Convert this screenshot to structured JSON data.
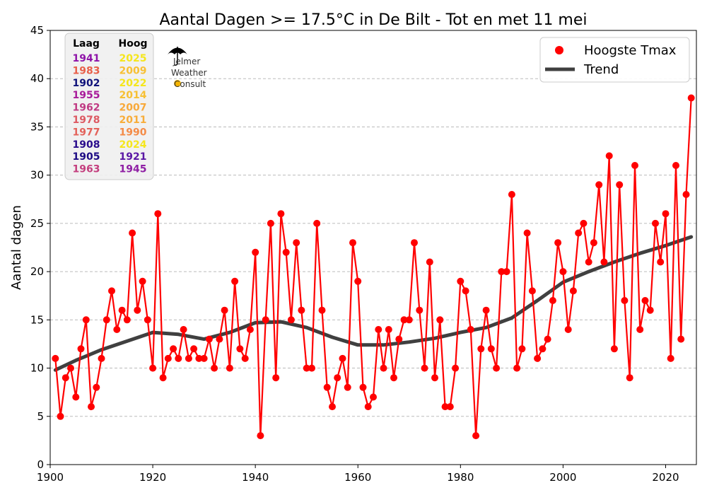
{
  "chart_data": {
    "type": "line",
    "title": "Aantal Dagen >= 17.5°C in De Bilt - Tot en met 11 mei",
    "xlabel": "",
    "ylabel": "Aantal dagen",
    "xlim": [
      1900,
      2026
    ],
    "ylim": [
      0,
      45
    ],
    "xticks": [
      "1900",
      "1920",
      "1940",
      "1960",
      "1980",
      "2000",
      "2020"
    ],
    "yticks": [
      "0",
      "5",
      "10",
      "15",
      "20",
      "25",
      "30",
      "35",
      "40",
      "45"
    ],
    "grid": "y-dashed",
    "legend_position": "top-right",
    "series": [
      {
        "name": "Hoogste Tmax",
        "color": "#ff0000",
        "x": [
          1901,
          1902,
          1903,
          1904,
          1905,
          1906,
          1907,
          1908,
          1909,
          1910,
          1911,
          1912,
          1913,
          1914,
          1915,
          1916,
          1917,
          1918,
          1919,
          1920,
          1921,
          1922,
          1923,
          1924,
          1925,
          1926,
          1927,
          1928,
          1929,
          1930,
          1931,
          1932,
          1933,
          1934,
          1935,
          1936,
          1937,
          1938,
          1939,
          1940,
          1941,
          1942,
          1943,
          1944,
          1945,
          1946,
          1947,
          1948,
          1949,
          1950,
          1951,
          1952,
          1953,
          1954,
          1955,
          1956,
          1957,
          1958,
          1959,
          1960,
          1961,
          1962,
          1963,
          1964,
          1965,
          1966,
          1967,
          1968,
          1969,
          1970,
          1971,
          1972,
          1973,
          1974,
          1975,
          1976,
          1977,
          1978,
          1979,
          1980,
          1981,
          1982,
          1983,
          1984,
          1985,
          1986,
          1987,
          1988,
          1989,
          1990,
          1991,
          1992,
          1993,
          1994,
          1995,
          1996,
          1997,
          1998,
          1999,
          2000,
          2001,
          2002,
          2003,
          2004,
          2005,
          2006,
          2007,
          2008,
          2009,
          2010,
          2011,
          2012,
          2013,
          2014,
          2015,
          2016,
          2017,
          2018,
          2019,
          2020,
          2021,
          2022,
          2023,
          2024,
          2025
        ],
        "values": [
          11,
          5,
          9,
          10,
          7,
          12,
          15,
          6,
          8,
          11,
          15,
          18,
          14,
          16,
          15,
          24,
          16,
          19,
          15,
          10,
          26,
          9,
          11,
          12,
          11,
          14,
          11,
          12,
          11,
          11,
          13,
          10,
          13,
          16,
          10,
          19,
          12,
          11,
          14,
          22,
          3,
          15,
          25,
          9,
          26,
          22,
          15,
          23,
          16,
          10,
          10,
          25,
          16,
          8,
          6,
          9,
          11,
          8,
          23,
          19,
          8,
          6,
          7,
          14,
          10,
          14,
          9,
          13,
          15,
          15,
          23,
          16,
          10,
          21,
          9,
          15,
          6,
          6,
          10,
          19,
          18,
          14,
          3,
          12,
          16,
          12,
          10,
          20,
          20,
          28,
          10,
          12,
          24,
          18,
          11,
          12,
          13,
          17,
          23,
          20,
          14,
          18,
          24,
          25,
          21,
          23,
          29,
          21,
          32,
          12,
          29,
          17,
          9,
          31,
          14,
          17,
          16,
          25,
          21,
          26,
          11,
          31,
          13,
          28,
          38
        ]
      },
      {
        "name": "Trend",
        "color": "#404040",
        "x": [
          1901,
          1905,
          1910,
          1915,
          1920,
          1925,
          1930,
          1935,
          1940,
          1945,
          1950,
          1955,
          1960,
          1965,
          1970,
          1975,
          1980,
          1985,
          1990,
          1995,
          2000,
          2005,
          2010,
          2015,
          2020,
          2025
        ],
        "values": [
          9.8,
          10.8,
          11.9,
          12.8,
          13.7,
          13.5,
          13.0,
          13.7,
          14.7,
          14.8,
          14.2,
          13.2,
          12.4,
          12.4,
          12.7,
          13.1,
          13.7,
          14.2,
          15.2,
          17.0,
          18.9,
          20.0,
          21.0,
          21.9,
          22.7,
          23.6
        ]
      }
    ],
    "rank_table": {
      "headers": [
        "Laag",
        "Hoog"
      ],
      "rows": [
        {
          "low": "1941",
          "low_color": "#8e13a8",
          "high": "2025",
          "high_color": "#f5e61c"
        },
        {
          "low": "1983",
          "low_color": "#e8604a",
          "high": "2009",
          "high_color": "#f7c034"
        },
        {
          "low": "1902",
          "low_color": "#10137a",
          "high": "2022",
          "high_color": "#f5e61c"
        },
        {
          "low": "1955",
          "low_color": "#a81b9a",
          "high": "2014",
          "high_color": "#f7c034"
        },
        {
          "low": "1962",
          "low_color": "#c03a83",
          "high": "2007",
          "high_color": "#f8a93a"
        },
        {
          "low": "1978",
          "low_color": "#dd5a63",
          "high": "2011",
          "high_color": "#f8ad3a"
        },
        {
          "low": "1977",
          "low_color": "#e3625a",
          "high": "1990",
          "high_color": "#f48b47"
        },
        {
          "low": "1908",
          "low_color": "#2a0c8c",
          "high": "2024",
          "high_color": "#f5e61c"
        },
        {
          "low": "1905",
          "low_color": "#1d0b84",
          "high": "1921",
          "high_color": "#5a17a4"
        },
        {
          "low": "1963",
          "low_color": "#c43f7e",
          "high": "1945",
          "high_color": "#8f1fa4"
        }
      ]
    }
  },
  "logo": {
    "lines": [
      "Jelmer",
      "Weather",
      "Consult"
    ],
    "icon": "umbrella-sun-icon"
  }
}
